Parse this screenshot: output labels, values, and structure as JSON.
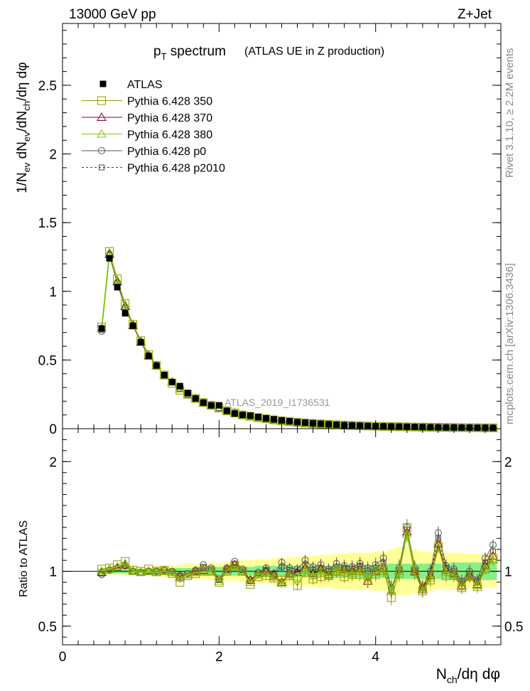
{
  "header": {
    "left": "13000 GeV pp",
    "right": "Z+Jet"
  },
  "side_text": {
    "top": "Rivet 3.1.10, ≥ 2.2M events",
    "bottom": "mcplots.cern.ch [arXiv:1306.3436]"
  },
  "watermark": "ATLAS_2019_I1736531",
  "chart_data": [
    {
      "type": "line",
      "panel": "main",
      "title": "p_T spectrum",
      "title_main": "p",
      "title_sub": "T",
      "title_rest": " spectrum",
      "subtitle": "(ATLAS UE in Z production)",
      "ylabel": "1/N_ev dN_ev/dN_ch/dη dφ",
      "xlim": [
        0,
        5.6
      ],
      "ylim": [
        0,
        2.95
      ],
      "yticks": [
        0,
        0.5,
        1,
        1.5,
        2,
        2.5
      ],
      "ytick_labels": [
        "0",
        "0.5",
        "1",
        "1.5",
        "2",
        "2.5"
      ],
      "legend": [
        "ATLAS",
        "Pythia 6.428 350",
        "Pythia 6.428 370",
        "Pythia 6.428 380",
        "Pythia 6.428 p0",
        "Pythia 6.428 p2010"
      ],
      "legend_position": "top-left",
      "x": [
        0.5,
        0.6,
        0.7,
        0.8,
        0.9,
        1.0,
        1.1,
        1.2,
        1.3,
        1.4,
        1.5,
        1.6,
        1.7,
        1.8,
        1.9,
        2.0,
        2.1,
        2.2,
        2.3,
        2.4,
        2.5,
        2.6,
        2.7,
        2.8,
        2.9,
        3.0,
        3.1,
        3.2,
        3.3,
        3.4,
        3.5,
        3.6,
        3.7,
        3.8,
        3.9,
        4.0,
        4.1,
        4.2,
        4.3,
        4.4,
        4.5,
        4.6,
        4.7,
        4.8,
        4.9,
        5.0,
        5.1,
        5.2,
        5.3,
        5.4,
        5.5
      ],
      "series": [
        {
          "name": "ATLAS",
          "values": [
            0.73,
            1.24,
            1.03,
            0.84,
            0.75,
            0.63,
            0.53,
            0.46,
            0.39,
            0.34,
            0.31,
            0.26,
            0.22,
            0.19,
            0.17,
            0.17,
            0.13,
            0.11,
            0.1,
            0.095,
            0.085,
            0.075,
            0.068,
            0.06,
            0.054,
            0.048,
            0.044,
            0.04,
            0.036,
            0.032,
            0.029,
            0.026,
            0.024,
            0.022,
            0.02,
            0.018,
            0.017,
            0.016,
            0.015,
            0.014,
            0.013,
            0.012,
            0.011,
            0.01,
            0.009,
            0.009,
            0.008,
            0.008,
            0.007,
            0.007,
            0.006
          ]
        },
        {
          "name": "Pythia 6.428 350",
          "values": [
            0.74,
            1.29,
            1.09,
            0.91,
            0.76,
            0.64,
            0.54,
            0.46,
            0.39,
            0.33,
            0.28,
            0.25,
            0.22,
            0.19,
            0.17,
            0.15,
            0.13,
            0.115,
            0.1,
            0.09,
            0.08,
            0.072,
            0.064,
            0.057,
            0.051,
            0.046,
            0.041,
            0.037,
            0.034,
            0.031,
            0.028,
            0.025,
            0.023,
            0.021,
            0.019,
            0.018,
            0.016,
            0.015,
            0.014,
            0.013,
            0.012,
            0.011,
            0.01,
            0.01,
            0.009,
            0.008,
            0.008,
            0.007,
            0.007,
            0.006,
            0.006
          ]
        },
        {
          "name": "Pythia 6.428 370",
          "values": [
            0.73,
            1.27,
            1.07,
            0.89,
            0.75,
            0.63,
            0.53,
            0.46,
            0.39,
            0.34,
            0.29,
            0.25,
            0.22,
            0.19,
            0.17,
            0.15,
            0.13,
            0.115,
            0.1,
            0.09,
            0.08,
            0.072,
            0.064,
            0.057,
            0.051,
            0.046,
            0.041,
            0.037,
            0.034,
            0.031,
            0.028,
            0.025,
            0.023,
            0.021,
            0.019,
            0.018,
            0.016,
            0.015,
            0.014,
            0.013,
            0.012,
            0.011,
            0.01,
            0.01,
            0.009,
            0.008,
            0.008,
            0.007,
            0.007,
            0.006,
            0.006
          ]
        },
        {
          "name": "Pythia 6.428 380",
          "values": [
            0.73,
            1.28,
            1.08,
            0.9,
            0.76,
            0.64,
            0.54,
            0.46,
            0.39,
            0.34,
            0.29,
            0.25,
            0.22,
            0.19,
            0.17,
            0.15,
            0.13,
            0.115,
            0.1,
            0.09,
            0.08,
            0.072,
            0.064,
            0.057,
            0.051,
            0.046,
            0.041,
            0.037,
            0.034,
            0.031,
            0.028,
            0.025,
            0.023,
            0.021,
            0.019,
            0.018,
            0.016,
            0.015,
            0.014,
            0.013,
            0.012,
            0.011,
            0.01,
            0.01,
            0.009,
            0.008,
            0.008,
            0.007,
            0.007,
            0.006,
            0.006
          ]
        },
        {
          "name": "Pythia 6.428 p0",
          "values": [
            0.71,
            1.26,
            1.06,
            0.88,
            0.75,
            0.63,
            0.53,
            0.46,
            0.39,
            0.34,
            0.29,
            0.25,
            0.22,
            0.19,
            0.17,
            0.15,
            0.13,
            0.115,
            0.1,
            0.09,
            0.08,
            0.072,
            0.064,
            0.057,
            0.051,
            0.046,
            0.041,
            0.037,
            0.034,
            0.031,
            0.028,
            0.025,
            0.023,
            0.021,
            0.019,
            0.018,
            0.016,
            0.015,
            0.014,
            0.013,
            0.012,
            0.011,
            0.01,
            0.01,
            0.009,
            0.008,
            0.008,
            0.007,
            0.007,
            0.006,
            0.006
          ]
        },
        {
          "name": "Pythia 6.428 p2010",
          "values": [
            0.72,
            1.27,
            1.06,
            0.88,
            0.75,
            0.63,
            0.53,
            0.46,
            0.39,
            0.34,
            0.29,
            0.25,
            0.22,
            0.19,
            0.17,
            0.15,
            0.13,
            0.115,
            0.1,
            0.09,
            0.08,
            0.072,
            0.064,
            0.057,
            0.051,
            0.046,
            0.041,
            0.037,
            0.034,
            0.031,
            0.028,
            0.025,
            0.023,
            0.021,
            0.019,
            0.018,
            0.016,
            0.015,
            0.014,
            0.013,
            0.012,
            0.011,
            0.01,
            0.01,
            0.009,
            0.008,
            0.008,
            0.007,
            0.007,
            0.006,
            0.006
          ]
        }
      ]
    },
    {
      "type": "line",
      "panel": "ratio",
      "ylabel": "Ratio to ATLAS",
      "xlabel": "N_ch/dη dφ",
      "xlabel_main": "N",
      "xlabel_sub": "ch",
      "xlabel_rest": "/dη dφ",
      "xlim": [
        0,
        5.6
      ],
      "ylim": [
        0.33,
        2.3
      ],
      "xticks": [
        0,
        2,
        4
      ],
      "xtick_labels": [
        "0",
        "2",
        "4"
      ],
      "yticks": [
        0.5,
        1,
        2
      ],
      "ytick_labels": [
        "0.5",
        "1",
        "2"
      ],
      "x": [
        0.5,
        0.6,
        0.7,
        0.8,
        0.9,
        1.0,
        1.1,
        1.2,
        1.3,
        1.4,
        1.5,
        1.6,
        1.7,
        1.8,
        1.9,
        2.0,
        2.1,
        2.2,
        2.3,
        2.4,
        2.5,
        2.6,
        2.7,
        2.8,
        2.9,
        3.0,
        3.1,
        3.2,
        3.3,
        3.4,
        3.5,
        3.6,
        3.7,
        3.8,
        3.9,
        4.0,
        4.1,
        4.2,
        4.3,
        4.4,
        4.5,
        4.6,
        4.7,
        4.8,
        4.9,
        5.0,
        5.1,
        5.2,
        5.3,
        5.4,
        5.5
      ],
      "band_inner": [
        0.02,
        0.02,
        0.02,
        0.02,
        0.02,
        0.02,
        0.02,
        0.02,
        0.02,
        0.02,
        0.03,
        0.03,
        0.03,
        0.03,
        0.03,
        0.04,
        0.04,
        0.04,
        0.04,
        0.04,
        0.05,
        0.05,
        0.05,
        0.05,
        0.05,
        0.05,
        0.05,
        0.05,
        0.05,
        0.05,
        0.06,
        0.06,
        0.06,
        0.06,
        0.06,
        0.06,
        0.06,
        0.07,
        0.07,
        0.07,
        0.07,
        0.07,
        0.07,
        0.07,
        0.07,
        0.08,
        0.08,
        0.08,
        0.08,
        0.08,
        0.08
      ],
      "band_outer": [
        0.03,
        0.03,
        0.03,
        0.04,
        0.04,
        0.04,
        0.04,
        0.05,
        0.05,
        0.06,
        0.06,
        0.07,
        0.07,
        0.07,
        0.08,
        0.08,
        0.09,
        0.09,
        0.1,
        0.1,
        0.11,
        0.11,
        0.12,
        0.12,
        0.13,
        0.13,
        0.14,
        0.14,
        0.15,
        0.15,
        0.16,
        0.16,
        0.17,
        0.17,
        0.17,
        0.18,
        0.18,
        0.2,
        0.22,
        0.22,
        0.2,
        0.18,
        0.18,
        0.17,
        0.17,
        0.17,
        0.17,
        0.16,
        0.16,
        0.15,
        0.15
      ],
      "series": [
        {
          "name": "Pythia 6.428 350",
          "values": [
            1.02,
            1.03,
            1.06,
            1.09,
            1.01,
            1.0,
            1.02,
            1.0,
            1.01,
            0.98,
            0.9,
            0.96,
            0.98,
            1.0,
            1.0,
            0.9,
            1.0,
            1.05,
            1.0,
            0.88,
            0.95,
            0.96,
            0.94,
            0.92,
            0.96,
            0.87,
            0.99,
            0.93,
            0.95,
            0.96,
            1.0,
            0.95,
            0.97,
            0.97,
            0.96,
            0.97,
            1.01,
            0.76,
            0.98,
            1.4,
            1.0,
            0.82,
            0.92,
            1.23,
            0.96,
            0.96,
            0.85,
            0.95,
            0.86,
            1.02,
            1.12
          ]
        },
        {
          "name": "Pythia 6.428 370",
          "values": [
            0.99,
            1.02,
            1.03,
            1.06,
            1.0,
            0.99,
            1.0,
            0.99,
            1.0,
            0.99,
            0.95,
            0.97,
            1.0,
            1.01,
            1.0,
            0.91,
            1.02,
            1.06,
            1.0,
            0.92,
            0.97,
            1.0,
            0.96,
            0.9,
            0.98,
            0.99,
            1.03,
            0.98,
            1.02,
            0.97,
            1.0,
            1.02,
            1.0,
            1.02,
            0.91,
            1.0,
            1.03,
            0.82,
            1.0,
            1.36,
            1.0,
            0.84,
            0.96,
            1.25,
            1.01,
            0.98,
            0.87,
            0.96,
            0.88,
            1.05,
            1.14
          ]
        },
        {
          "name": "Pythia 6.428 380",
          "values": [
            1.0,
            1.02,
            1.04,
            1.07,
            1.0,
            0.99,
            1.0,
            0.99,
            1.0,
            0.99,
            0.94,
            0.97,
            0.99,
            1.0,
            1.0,
            0.91,
            1.01,
            1.05,
            1.0,
            0.9,
            0.97,
            0.98,
            0.95,
            0.89,
            0.97,
            0.95,
            1.01,
            0.96,
            1.0,
            0.96,
            1.0,
            1.0,
            0.98,
            1.0,
            0.93,
            0.99,
            1.02,
            0.82,
            1.0,
            1.34,
            0.99,
            0.83,
            0.94,
            1.22,
            0.99,
            0.97,
            0.86,
            0.95,
            0.87,
            1.03,
            1.1
          ]
        },
        {
          "name": "Pythia 6.428 p0",
          "values": [
            0.97,
            1.01,
            1.03,
            1.05,
            1.0,
            0.99,
            1.0,
            1.0,
            1.01,
            1.0,
            0.96,
            0.98,
            1.01,
            1.06,
            1.03,
            0.93,
            1.03,
            1.09,
            1.02,
            0.92,
            0.99,
            1.03,
            0.98,
            1.08,
            1.03,
            1.02,
            1.1,
            1.04,
            1.06,
            1.02,
            1.07,
            1.05,
            1.04,
            1.07,
            1.03,
            1.06,
            1.12,
            0.85,
            1.03,
            1.4,
            1.03,
            0.86,
            1.0,
            1.35,
            1.05,
            1.02,
            0.91,
            1.0,
            0.92,
            1.12,
            1.24
          ]
        },
        {
          "name": "Pythia 6.428 p2010",
          "values": [
            0.98,
            1.01,
            1.03,
            1.05,
            1.0,
            0.99,
            1.0,
            1.0,
            1.01,
            1.0,
            0.96,
            0.98,
            1.0,
            1.04,
            1.02,
            0.92,
            1.02,
            1.07,
            1.01,
            0.91,
            0.98,
            1.01,
            0.97,
            1.04,
            1.01,
            0.99,
            1.06,
            1.01,
            1.03,
            1.0,
            1.04,
            1.03,
            1.02,
            1.05,
            1.0,
            1.03,
            1.08,
            0.83,
            1.01,
            1.38,
            1.01,
            0.85,
            0.98,
            1.3,
            1.03,
            1.0,
            0.89,
            0.98,
            0.9,
            1.08,
            1.18
          ]
        }
      ]
    }
  ],
  "colors": {
    "ATLAS": "#000000",
    "Pythia 6.428 350": "#999900",
    "Pythia 6.428 370": "#880022",
    "Pythia 6.428 380": "#77cc00",
    "Pythia 6.428 p0": "#555555",
    "Pythia 6.428 p2010": "#444444",
    "band_inner": "#88ee88",
    "band_outer": "#ffff99",
    "side_text": "#888888",
    "watermark": "#999999"
  }
}
